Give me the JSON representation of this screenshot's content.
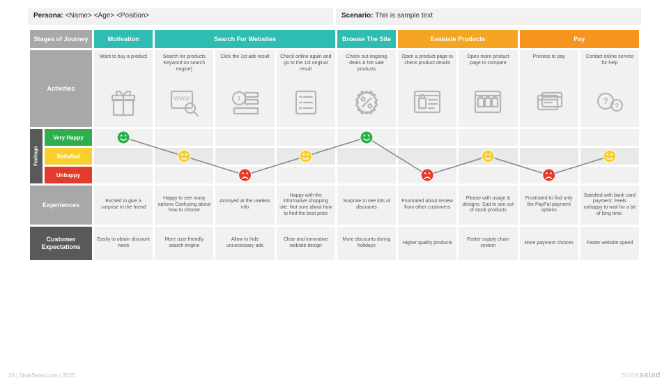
{
  "header": {
    "persona_label": "Persona:",
    "persona_value": "<Name> <Age> <Position>",
    "scenario_label": "Scenario:",
    "scenario_value": "This is sample text"
  },
  "row_labels": {
    "stages": "Stages of Journey",
    "activities": "Activities",
    "feelings": "Feelings",
    "feel_levels": [
      "Very Happy",
      "Satisfied",
      "Unhappy"
    ],
    "experiences": "Experiences",
    "expectations": "Customer Expectations"
  },
  "colors": {
    "very_happy": "#2fae4c",
    "satisfied": "#f9cf2f",
    "unhappy": "#e23b2d",
    "cell_bg": "#f1f1f1",
    "cell_bg_alt": "#e9e9e9",
    "rowlabel": "#a8a8a8",
    "rowlabel_dark": "#595959",
    "line": "#8a8a8a",
    "icon": "#b5b5b5"
  },
  "stages": [
    {
      "label": "Motivation",
      "span": 1,
      "color": "#2fbcb3"
    },
    {
      "label": "Search For Websites",
      "span": 3,
      "color": "#2fbcb3"
    },
    {
      "label": "Browse The Site",
      "span": 1,
      "color": "#2fbcb3"
    },
    {
      "label": "Evaluate Products",
      "span": 2,
      "color": "#f5a423"
    },
    {
      "label": "Pay",
      "span": 2,
      "color": "#f7931e"
    }
  ],
  "columns": [
    {
      "activity": "Want to buy a product",
      "icon": "gift",
      "feel": 0,
      "experience": "Excited to give a surprise to the friend",
      "expectation": "Easily to obtain discount news"
    },
    {
      "activity": "Search for products Keyword on search engine)",
      "icon": "www-search",
      "feel": 1,
      "experience": "Happy to see many options Confusing about how to choose",
      "expectation": "More user friendly search engine"
    },
    {
      "activity": "Click the 1st ads result",
      "icon": "ad",
      "feel": 2,
      "experience": "Annoyed at the useless info",
      "expectation": "Allow to hide unnecessary ads"
    },
    {
      "activity": "Check online again and go to the 1st original result",
      "icon": "list",
      "feel": 1,
      "experience": "Happy with the informative shopping site. Not sure about how to find the best price",
      "expectation": "Clear and innovative website design"
    },
    {
      "activity": "Check out ongoing deals & hot sale products",
      "icon": "discount",
      "feel": 0,
      "experience": "Surprise to see lots of discounts",
      "expectation": "More discounts during holidays"
    },
    {
      "activity": "Open a product page to check product details",
      "icon": "product",
      "feel": 2,
      "experience": "Frustrated about review from other customers",
      "expectation": "Higher quality products"
    },
    {
      "activity": "Open more product page to compare",
      "icon": "compare",
      "feel": 1,
      "experience": "Please with usage & designs. Sad to see out of stock products",
      "expectation": "Faster supply chain system"
    },
    {
      "activity": "Process to pay",
      "icon": "card",
      "feel": 2,
      "experience": "Frustrated to find only the PayPal payment options",
      "expectation": "More payment choices"
    },
    {
      "activity": "Contact online service for help",
      "icon": "help",
      "feel": 1,
      "experience": "Satisfied with bank card payment. Feels unhappy to wait for a bit of long time.",
      "expectation": "Faster website speed"
    }
  ],
  "footer": {
    "left": "26    | SlideSalad.com | 2020",
    "brand_light": "slide",
    "brand_bold": "salad"
  },
  "layout": {
    "face_r": 9,
    "face_stroke": "#ffffff"
  }
}
